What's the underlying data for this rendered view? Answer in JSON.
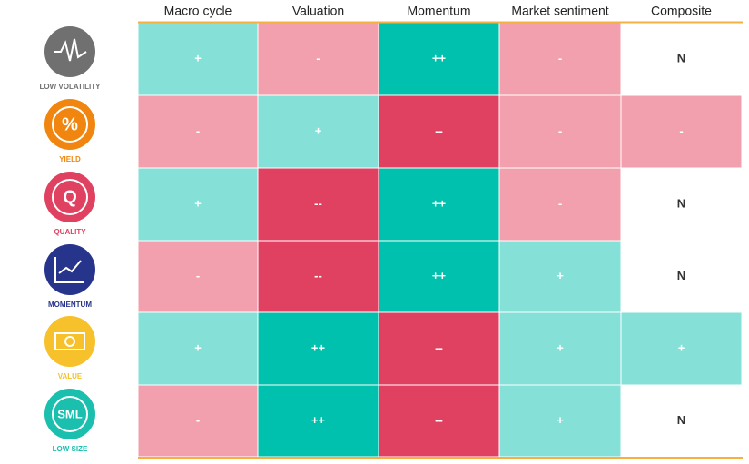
{
  "table": {
    "columns": [
      "Macro cycle",
      "Valuation",
      "Momentum",
      "Market sentiment",
      "Composite"
    ],
    "rows": [
      {
        "label": "LOW VOLATILITY",
        "color": "#707070",
        "cells": [
          {
            "text": "+",
            "color": "#85e0d8"
          },
          {
            "text": "-",
            "color": "#f2a0ae"
          },
          {
            "text": "++",
            "color": "#00c1ad"
          },
          {
            "text": "-",
            "color": "#f2a0ae"
          },
          {
            "text": "N",
            "color": "#ffffff"
          }
        ]
      },
      {
        "label": "YIELD",
        "color": "#f0860f",
        "icon_text": "%",
        "cells": [
          {
            "text": "-",
            "color": "#f2a0ae"
          },
          {
            "text": "+",
            "color": "#85e0d8"
          },
          {
            "text": "--",
            "color": "#e04161"
          },
          {
            "text": "-",
            "color": "#f2a0ae"
          },
          {
            "text": "-",
            "color": "#f2a0ae"
          }
        ]
      },
      {
        "label": "QUALITY",
        "color": "#e04161",
        "icon_text": "Q",
        "cells": [
          {
            "text": "+",
            "color": "#85e0d8"
          },
          {
            "text": "--",
            "color": "#e04161"
          },
          {
            "text": "++",
            "color": "#00c1ad"
          },
          {
            "text": "-",
            "color": "#f2a0ae"
          },
          {
            "text": "N",
            "color": "#ffffff"
          }
        ]
      },
      {
        "label": "MOMENTUM",
        "color": "#27348b",
        "cells": [
          {
            "text": "-",
            "color": "#f2a0ae"
          },
          {
            "text": "--",
            "color": "#e04161"
          },
          {
            "text": "++",
            "color": "#00c1ad"
          },
          {
            "text": "+",
            "color": "#85e0d8"
          },
          {
            "text": "N",
            "color": "#ffffff"
          }
        ]
      },
      {
        "label": "VALUE",
        "color": "#f6c12a",
        "cells": [
          {
            "text": "+",
            "color": "#85e0d8"
          },
          {
            "text": "++",
            "color": "#00c1ad"
          },
          {
            "text": "--",
            "color": "#e04161"
          },
          {
            "text": "+",
            "color": "#85e0d8"
          },
          {
            "text": "+",
            "color": "#85e0d8"
          }
        ]
      },
      {
        "label": "LOW SIZE",
        "color": "#1bbfae",
        "icon_text": "SML",
        "cells": [
          {
            "text": "-",
            "color": "#f2a0ae"
          },
          {
            "text": "++",
            "color": "#00c1ad"
          },
          {
            "text": "--",
            "color": "#e04161"
          },
          {
            "text": "+",
            "color": "#85e0d8"
          },
          {
            "text": "N",
            "color": "#ffffff"
          }
        ]
      }
    ]
  }
}
